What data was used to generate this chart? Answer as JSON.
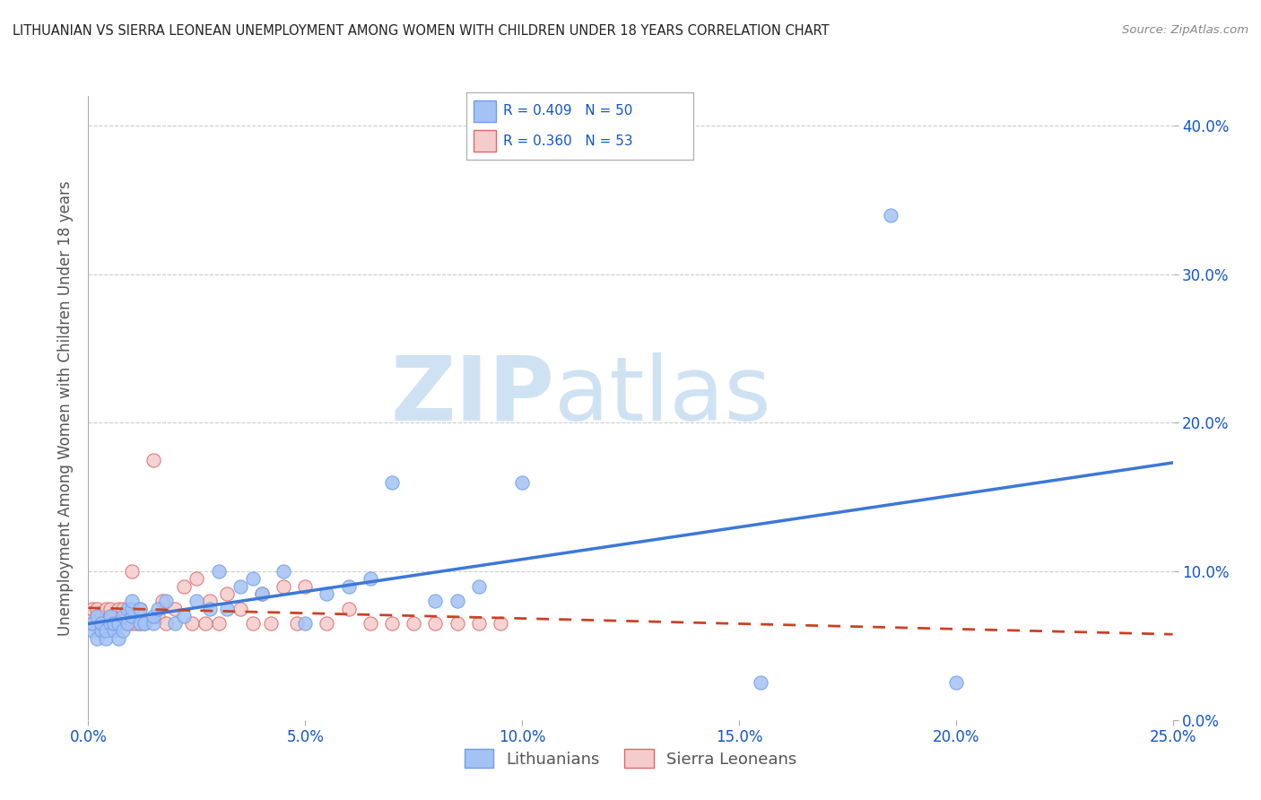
{
  "title": "LITHUANIAN VS SIERRA LEONEAN UNEMPLOYMENT AMONG WOMEN WITH CHILDREN UNDER 18 YEARS CORRELATION CHART",
  "source": "Source: ZipAtlas.com",
  "ylabel": "Unemployment Among Women with Children Under 18 years",
  "legend_labels": [
    "Lithuanians",
    "Sierra Leoneans"
  ],
  "legend_r": [
    "R = 0.409",
    "N = 50",
    "R = 0.360",
    "N = 53"
  ],
  "xlim": [
    0.0,
    0.25
  ],
  "ylim": [
    0.0,
    0.42
  ],
  "xticklabels": [
    "0.0%",
    "5.0%",
    "10.0%",
    "15.0%",
    "20.0%",
    "25.0%"
  ],
  "yticklabels_right": [
    "0.0%",
    "10.0%",
    "20.0%",
    "30.0%",
    "40.0%"
  ],
  "color_blue": "#a4c2f4",
  "color_pink": "#f4cccc",
  "edge_blue": "#6d9eeb",
  "edge_pink": "#e06666",
  "trend_blue": "#3c78d8",
  "trend_pink": "#cc4125",
  "text_blue": "#1155cc",
  "watermark_zip": "ZIP",
  "watermark_atlas": "atlas",
  "watermark_color": "#cfe2f3",
  "background": "#ffffff",
  "grid_color": "#cccccc",
  "lith_x": [
    0.001,
    0.001,
    0.002,
    0.002,
    0.003,
    0.003,
    0.004,
    0.004,
    0.005,
    0.005,
    0.006,
    0.006,
    0.007,
    0.007,
    0.008,
    0.008,
    0.009,
    0.009,
    0.01,
    0.01,
    0.01,
    0.012,
    0.012,
    0.013,
    0.015,
    0.015,
    0.016,
    0.018,
    0.02,
    0.022,
    0.025,
    0.028,
    0.03,
    0.032,
    0.035,
    0.038,
    0.04,
    0.045,
    0.05,
    0.055,
    0.06,
    0.065,
    0.07,
    0.08,
    0.085,
    0.09,
    0.1,
    0.155,
    0.185,
    0.2
  ],
  "lith_y": [
    0.06,
    0.065,
    0.055,
    0.07,
    0.06,
    0.065,
    0.055,
    0.06,
    0.065,
    0.07,
    0.06,
    0.065,
    0.055,
    0.065,
    0.06,
    0.07,
    0.065,
    0.075,
    0.07,
    0.075,
    0.08,
    0.065,
    0.075,
    0.065,
    0.065,
    0.07,
    0.075,
    0.08,
    0.065,
    0.07,
    0.08,
    0.075,
    0.1,
    0.075,
    0.09,
    0.095,
    0.085,
    0.1,
    0.065,
    0.085,
    0.09,
    0.095,
    0.16,
    0.08,
    0.08,
    0.09,
    0.16,
    0.025,
    0.34,
    0.025
  ],
  "sl_x": [
    0.001,
    0.001,
    0.001,
    0.002,
    0.002,
    0.003,
    0.003,
    0.004,
    0.004,
    0.005,
    0.005,
    0.006,
    0.006,
    0.007,
    0.007,
    0.008,
    0.008,
    0.009,
    0.009,
    0.01,
    0.01,
    0.011,
    0.012,
    0.012,
    0.013,
    0.015,
    0.016,
    0.017,
    0.018,
    0.02,
    0.022,
    0.024,
    0.025,
    0.027,
    0.028,
    0.03,
    0.032,
    0.035,
    0.038,
    0.04,
    0.042,
    0.045,
    0.048,
    0.05,
    0.055,
    0.06,
    0.065,
    0.07,
    0.075,
    0.08,
    0.085,
    0.09,
    0.095
  ],
  "sl_y": [
    0.07,
    0.075,
    0.065,
    0.07,
    0.075,
    0.065,
    0.07,
    0.07,
    0.075,
    0.065,
    0.075,
    0.065,
    0.07,
    0.065,
    0.075,
    0.065,
    0.075,
    0.065,
    0.07,
    0.065,
    0.1,
    0.065,
    0.065,
    0.075,
    0.065,
    0.175,
    0.07,
    0.08,
    0.065,
    0.075,
    0.09,
    0.065,
    0.095,
    0.065,
    0.08,
    0.065,
    0.085,
    0.075,
    0.065,
    0.085,
    0.065,
    0.09,
    0.065,
    0.09,
    0.065,
    0.075,
    0.065,
    0.065,
    0.065,
    0.065,
    0.065,
    0.065,
    0.065
  ]
}
